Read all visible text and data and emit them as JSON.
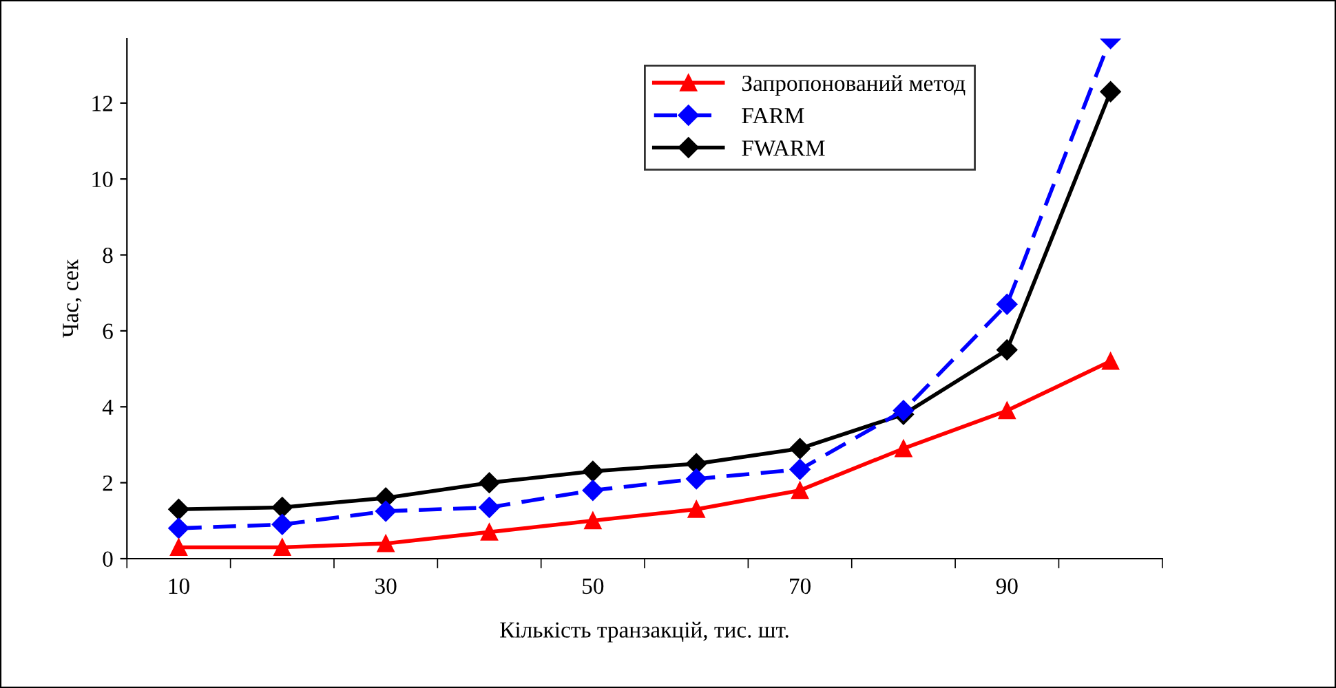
{
  "chart_data": {
    "type": "line",
    "xlabel": "Кількість транзакцій, тис. шт.",
    "ylabel": "Час, сек",
    "categories": [
      "10",
      null,
      "30",
      null,
      "50",
      null,
      "70",
      null,
      "90",
      null
    ],
    "ylim": [
      0,
      13.7
    ],
    "yticks": [
      0,
      2,
      4,
      6,
      8,
      10,
      12
    ],
    "grid": false,
    "legend": "top right",
    "series": [
      {
        "name": "Запропонований метод",
        "color": "#ff0000",
        "marker": "triangle",
        "line_style": "solid",
        "values": [
          0.3,
          0.3,
          0.4,
          0.7,
          1.0,
          1.3,
          1.8,
          2.9,
          3.9,
          5.2
        ]
      },
      {
        "name": "FARM",
        "color": "#0000ff",
        "marker": "diamond",
        "line_style": "dashed",
        "values": [
          0.8,
          0.9,
          1.25,
          1.35,
          1.8,
          2.1,
          2.35,
          3.9,
          6.7,
          13.7
        ]
      },
      {
        "name": "FWARM",
        "color": "#000000",
        "marker": "diamond",
        "line_style": "solid",
        "values": [
          1.3,
          1.35,
          1.6,
          2.0,
          2.3,
          2.5,
          2.9,
          3.8,
          5.5,
          12.3
        ]
      }
    ]
  }
}
